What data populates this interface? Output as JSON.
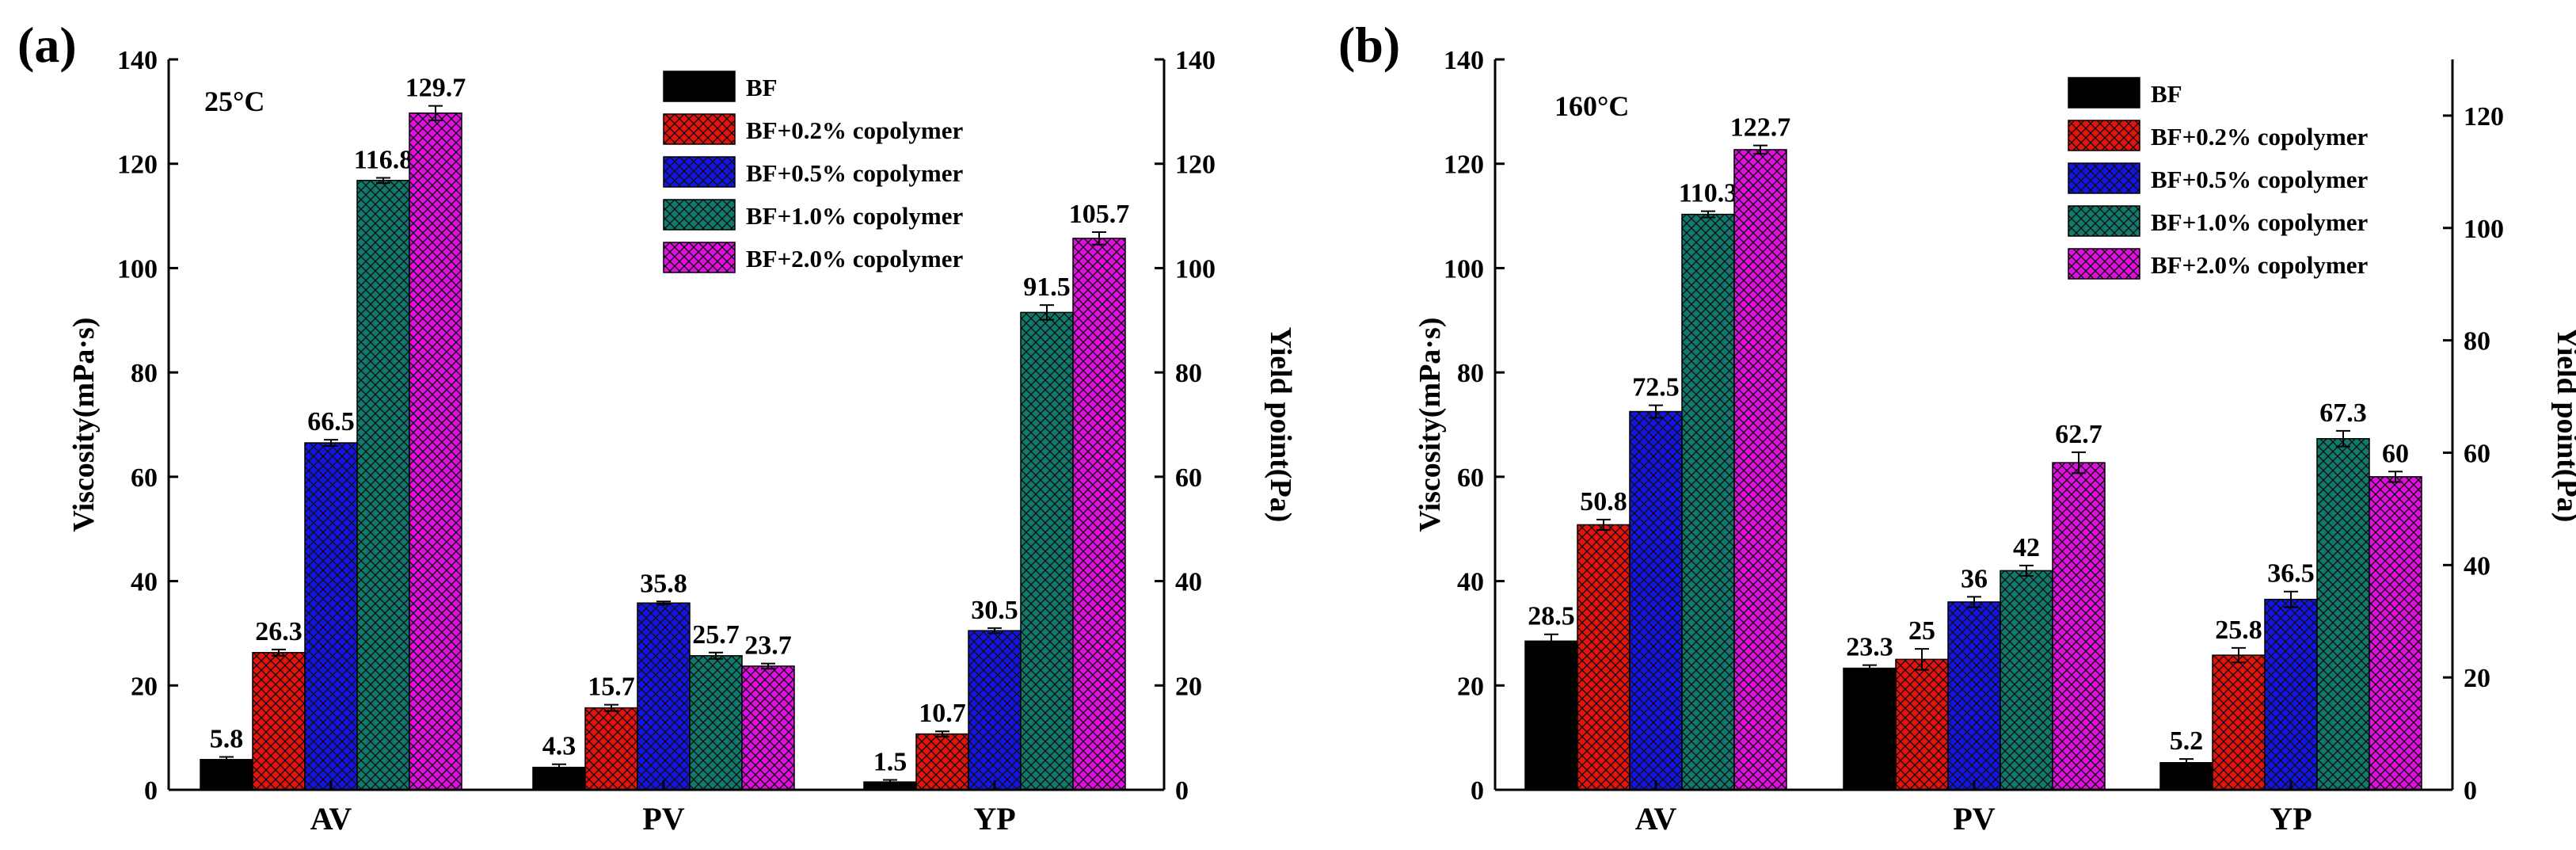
{
  "series_colors": {
    "BF": "#000000",
    "BF+0.2% copolymer": "#e8120c",
    "BF+0.5% copolymer": "#1414e6",
    "BF+1.0% copolymer": "#127a6c",
    "BF+2.0% copolymer": "#e00ee0"
  },
  "chart_data": [
    {
      "type": "bar",
      "panel_label": "(a)",
      "annotation": "25°C",
      "categories": [
        "AV",
        "PV",
        "YP"
      ],
      "ylabel": "Viscosity(mPa·s)",
      "y2label": "Yield point(Pa)",
      "ylim": [
        0,
        140
      ],
      "y2lim": [
        0,
        140
      ],
      "yticks": [
        "0",
        "20",
        "40",
        "60",
        "80",
        "100",
        "120",
        "140"
      ],
      "y2ticks": [
        "0",
        "20",
        "40",
        "60",
        "80",
        "100",
        "120",
        "140"
      ],
      "legend_position": "top-right",
      "series": [
        {
          "name": "BF",
          "values": [
            5.8,
            4.3,
            1.5
          ],
          "labels": [
            "5.8",
            "4.3",
            "1.5"
          ],
          "errors": [
            0.5,
            0.6,
            0.4
          ]
        },
        {
          "name": "BF+0.2% copolymer",
          "values": [
            26.3,
            15.7,
            10.7
          ],
          "labels": [
            "26.3",
            "15.7",
            "10.7"
          ],
          "errors": [
            0.6,
            0.6,
            0.5
          ]
        },
        {
          "name": "BF+0.5% copolymer",
          "values": [
            66.5,
            35.8,
            30.5
          ],
          "labels": [
            "66.5",
            "35.8",
            "30.5"
          ],
          "errors": [
            0.6,
            0.3,
            0.5
          ]
        },
        {
          "name": "BF+1.0% copolymer",
          "values": [
            116.8,
            25.7,
            91.5
          ],
          "labels": [
            "116.8",
            "25.7",
            "91.5"
          ],
          "errors": [
            0.5,
            0.6,
            1.4
          ]
        },
        {
          "name": "BF+2.0% copolymer",
          "values": [
            129.7,
            23.7,
            105.7
          ],
          "labels": [
            "129.7",
            "23.7",
            "105.7"
          ],
          "errors": [
            1.4,
            0.5,
            1.2
          ]
        }
      ]
    },
    {
      "type": "bar",
      "panel_label": "(b)",
      "annotation": "160°C",
      "categories": [
        "AV",
        "PV",
        "YP"
      ],
      "ylabel": "Viscosity(mPa·s)",
      "y2label": "Yield point(Pa)",
      "ylim": [
        0,
        140
      ],
      "y2lim": [
        0,
        130
      ],
      "yticks": [
        "0",
        "20",
        "40",
        "60",
        "80",
        "100",
        "120",
        "140"
      ],
      "y2ticks": [
        "0",
        "20",
        "40",
        "60",
        "80",
        "100",
        "120"
      ],
      "legend_position": "top-right",
      "series": [
        {
          "name": "BF",
          "values": [
            28.5,
            23.3,
            5.2
          ],
          "labels": [
            "28.5",
            "23.3",
            "5.2"
          ],
          "errors": [
            1.3,
            0.6,
            0.7
          ]
        },
        {
          "name": "BF+0.2% copolymer",
          "values": [
            50.8,
            25,
            25.8
          ],
          "labels": [
            "50.8",
            "25",
            "25.8"
          ],
          "errors": [
            1.0,
            2.0,
            1.4
          ]
        },
        {
          "name": "BF+0.5% copolymer",
          "values": [
            72.5,
            36,
            36.5
          ],
          "labels": [
            "72.5",
            "36",
            "36.5"
          ],
          "errors": [
            1.2,
            1.0,
            1.5
          ]
        },
        {
          "name": "BF+1.0% copolymer",
          "values": [
            110.3,
            42,
            67.3
          ],
          "labels": [
            "110.3",
            "42",
            "67.3"
          ],
          "errors": [
            0.6,
            1.0,
            1.5
          ]
        },
        {
          "name": "BF+2.0% copolymer",
          "values": [
            122.7,
            62.7,
            60
          ],
          "labels": [
            "122.7",
            "62.7",
            "60"
          ],
          "errors": [
            0.8,
            2.0,
            1.0
          ]
        }
      ]
    }
  ]
}
